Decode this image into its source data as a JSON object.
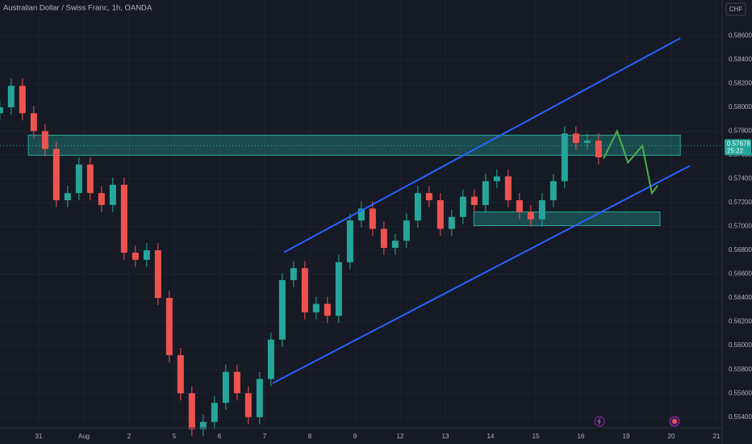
{
  "chart_data": {
    "type": "candlestick",
    "title": "Australian Dollar / Swiss Franc, 1h, OANDA",
    "currency": "CHF",
    "xlim": [
      -0.857,
      15.125
    ],
    "xticks": [
      {
        "value": 0,
        "label": "31"
      },
      {
        "value": 1,
        "label": "Aug"
      },
      {
        "value": 2,
        "label": "2"
      },
      {
        "value": 3,
        "label": "5"
      },
      {
        "value": 4,
        "label": "6"
      },
      {
        "value": 5,
        "label": "7"
      },
      {
        "value": 6,
        "label": "8"
      },
      {
        "value": 7,
        "label": "9"
      },
      {
        "value": 8,
        "label": "12"
      },
      {
        "value": 9,
        "label": "13"
      },
      {
        "value": 10,
        "label": "14"
      },
      {
        "value": 11,
        "label": "15"
      },
      {
        "value": 12,
        "label": "16"
      },
      {
        "value": 13,
        "label": "19"
      },
      {
        "value": 14,
        "label": "20"
      },
      {
        "value": 15,
        "label": "21"
      }
    ],
    "ylim": [
      0.5531,
      0.589
    ],
    "yticks": [
      {
        "value": 0.554,
        "label": "0.55400"
      },
      {
        "value": 0.556,
        "label": "0.55600"
      },
      {
        "value": 0.558,
        "label": "0.55800"
      },
      {
        "value": 0.56,
        "label": "0.56000"
      },
      {
        "value": 0.562,
        "label": "0.56200"
      },
      {
        "value": 0.564,
        "label": "0.56400"
      },
      {
        "value": 0.566,
        "label": "0.56600"
      },
      {
        "value": 0.568,
        "label": "0.56800"
      },
      {
        "value": 0.57,
        "label": "0.57000"
      },
      {
        "value": 0.572,
        "label": "0.57200"
      },
      {
        "value": 0.574,
        "label": "0.57400"
      },
      {
        "value": 0.576,
        "label": "0.57600"
      },
      {
        "value": 0.578,
        "label": "0.57800"
      },
      {
        "value": 0.58,
        "label": "0.58000"
      },
      {
        "value": 0.582,
        "label": "0.58200"
      },
      {
        "value": 0.584,
        "label": "0.58400"
      },
      {
        "value": 0.586,
        "label": "0.58600"
      }
    ],
    "grid": true,
    "up_color": "#26a69a",
    "down_color": "#ef5350",
    "x": [
      -0.86,
      -0.61,
      -0.36,
      -0.11,
      0.14,
      0.39,
      0.64,
      0.89,
      1.14,
      1.39,
      1.64,
      1.89,
      2.14,
      2.39,
      2.64,
      2.89,
      3.14,
      3.39,
      3.64,
      3.89,
      4.14,
      4.39,
      4.64,
      4.89,
      5.14,
      5.39,
      5.64,
      5.89,
      6.14,
      6.39,
      6.64,
      6.89,
      7.14,
      7.39,
      7.64,
      7.89,
      8.14,
      8.39,
      8.64,
      8.89,
      9.14,
      9.39,
      9.64,
      9.89,
      10.14,
      10.39,
      10.64,
      10.89,
      11.14,
      11.39,
      11.64,
      11.89,
      12.14,
      12.39
    ],
    "open": [
      0.5795,
      0.58,
      0.5818,
      0.5795,
      0.578,
      0.5765,
      0.5722,
      0.5728,
      0.5752,
      0.5728,
      0.5718,
      0.5735,
      0.5678,
      0.5672,
      0.568,
      0.564,
      0.5592,
      0.556,
      0.553,
      0.5536,
      0.5552,
      0.5578,
      0.556,
      0.554,
      0.5572,
      0.5605,
      0.5655,
      0.5665,
      0.5628,
      0.5635,
      0.5625,
      0.567,
      0.5705,
      0.5715,
      0.5698,
      0.5682,
      0.5688,
      0.5705,
      0.5728,
      0.5722,
      0.5698,
      0.5708,
      0.5725,
      0.5718,
      0.5738,
      0.5742,
      0.5722,
      0.5712,
      0.5706,
      0.5722,
      0.5738,
      0.5778,
      0.577,
      0.5772
    ],
    "high": [
      0.5806,
      0.5824,
      0.5824,
      0.5801,
      0.5786,
      0.5771,
      0.5734,
      0.5758,
      0.5758,
      0.5734,
      0.5741,
      0.5741,
      0.5684,
      0.5686,
      0.5686,
      0.5646,
      0.5598,
      0.5566,
      0.5542,
      0.5558,
      0.5584,
      0.5584,
      0.5566,
      0.5578,
      0.5611,
      0.5661,
      0.5671,
      0.5671,
      0.5641,
      0.5641,
      0.5676,
      0.5711,
      0.5721,
      0.5721,
      0.5704,
      0.5694,
      0.5711,
      0.5734,
      0.5734,
      0.5728,
      0.5714,
      0.5731,
      0.5731,
      0.5744,
      0.5748,
      0.5748,
      0.5728,
      0.5718,
      0.5728,
      0.5744,
      0.5784,
      0.5784,
      0.5778,
      0.5778
    ],
    "low": [
      0.5789,
      0.5794,
      0.5789,
      0.5774,
      0.5759,
      0.5716,
      0.5716,
      0.5722,
      0.5722,
      0.5712,
      0.5712,
      0.5672,
      0.5666,
      0.5666,
      0.5634,
      0.5586,
      0.5554,
      0.5524,
      0.5524,
      0.553,
      0.5546,
      0.5554,
      0.5534,
      0.5534,
      0.5566,
      0.5599,
      0.5649,
      0.5622,
      0.5622,
      0.5619,
      0.5619,
      0.5664,
      0.5699,
      0.5692,
      0.5676,
      0.5676,
      0.5682,
      0.5699,
      0.5716,
      0.5692,
      0.5692,
      0.5702,
      0.5712,
      0.5712,
      0.5732,
      0.5716,
      0.5706,
      0.57,
      0.57,
      0.5716,
      0.5732,
      0.5764,
      0.5764,
      0.5752
    ],
    "close": [
      0.58,
      0.5818,
      0.5795,
      0.578,
      0.5765,
      0.5722,
      0.5728,
      0.5752,
      0.5728,
      0.5718,
      0.5735,
      0.5678,
      0.5672,
      0.568,
      0.564,
      0.5592,
      0.556,
      0.553,
      0.5536,
      0.5552,
      0.5578,
      0.556,
      0.554,
      0.5572,
      0.5605,
      0.5655,
      0.5665,
      0.5628,
      0.5635,
      0.5625,
      0.567,
      0.5705,
      0.5715,
      0.5698,
      0.5682,
      0.5688,
      0.5705,
      0.5728,
      0.5722,
      0.5698,
      0.5708,
      0.5725,
      0.5718,
      0.5738,
      0.5742,
      0.5722,
      0.5712,
      0.5706,
      0.5722,
      0.5738,
      0.5778,
      0.577,
      0.5772,
      0.5758
    ],
    "last_price": {
      "value": 0.57678,
      "label": "0.57678"
    },
    "countdown": "25:22",
    "zones": [
      {
        "x": [
          -0.23,
          14.2
        ],
        "y": [
          0.57597,
          0.57766
        ]
      },
      {
        "x": [
          9.63,
          13.75
        ],
        "y": [
          0.57007,
          0.57122
        ]
      }
    ],
    "trend_lines": [
      {
        "x": [
          5.43,
          14.2
        ],
        "y": [
          0.56783,
          0.5858
        ]
      },
      {
        "x": [
          5.18,
          14.41
        ],
        "y": [
          0.55685,
          0.57509
        ]
      }
    ],
    "projection": {
      "x": [
        12.5,
        12.8,
        13.04,
        13.36,
        13.57,
        13.7
      ],
      "y": [
        0.5757,
        0.578,
        0.57536,
        0.57678,
        0.57278,
        0.57346
      ]
    }
  }
}
